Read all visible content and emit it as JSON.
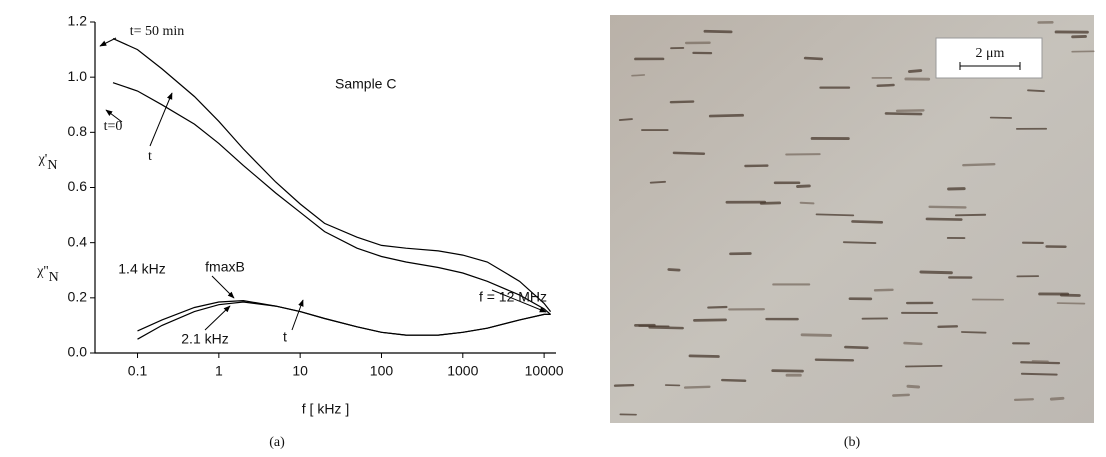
{
  "chart_data": {
    "type": "line",
    "x_label": "f [ kHz ]",
    "y_labels": [
      {
        "text": "χ'",
        "subscript": "N"
      },
      {
        "text": "χ''",
        "subscript": "N"
      }
    ],
    "log_x": true,
    "xlim": [
      0.03,
      14000
    ],
    "xticks": [
      0.1,
      1,
      10,
      100,
      1000,
      10000
    ],
    "ylim": [
      0,
      1.2
    ],
    "yticks": [
      {
        "value": 0,
        "label": "0.0"
      },
      0.2,
      0.4,
      0.6,
      0.8,
      {
        "value": 1,
        "label": "1.0"
      },
      1.2
    ],
    "x": [
      0.05,
      0.1,
      0.2,
      0.5,
      1,
      2,
      5,
      10,
      20,
      50,
      100,
      200,
      500,
      1000,
      2000,
      5000,
      10000,
      12000
    ],
    "series": [
      {
        "color": "#000000",
        "values": [
          1.14,
          1.1,
          1.03,
          0.93,
          0.84,
          0.74,
          0.62,
          0.54,
          0.47,
          0.42,
          0.39,
          0.38,
          0.37,
          0.355,
          0.33,
          0.26,
          0.18,
          0.15
        ]
      },
      {
        "color": "#000000",
        "values": [
          0.98,
          0.95,
          0.9,
          0.83,
          0.76,
          0.68,
          0.58,
          0.51,
          0.44,
          0.38,
          0.35,
          0.33,
          0.31,
          0.29,
          0.26,
          0.21,
          0.16,
          0.14
        ]
      },
      {
        "color": "#000000",
        "values": [
          null,
          0.08,
          0.12,
          0.165,
          0.185,
          0.19,
          0.17,
          0.15,
          0.125,
          0.095,
          0.075,
          0.065,
          0.065,
          0.075,
          0.09,
          0.12,
          0.14,
          0.14
        ]
      },
      {
        "color": "#000000",
        "values": [
          null,
          0.05,
          0.1,
          0.15,
          0.175,
          0.185,
          0.17,
          0.15,
          0.125,
          0.095,
          0.075,
          0.065,
          0.065,
          0.075,
          0.09,
          0.12,
          0.14,
          0.14
        ]
      }
    ],
    "annotations": [
      "t= 50 min",
      "t=0",
      "t",
      "Sample C",
      "1.4 kHz",
      "fmaxB",
      "2.1 kHz",
      "t",
      "f = 12 MHz"
    ]
  },
  "panels": {
    "left_label": "(a)",
    "right_label": "(b)",
    "scale_bar": "2 μm"
  }
}
